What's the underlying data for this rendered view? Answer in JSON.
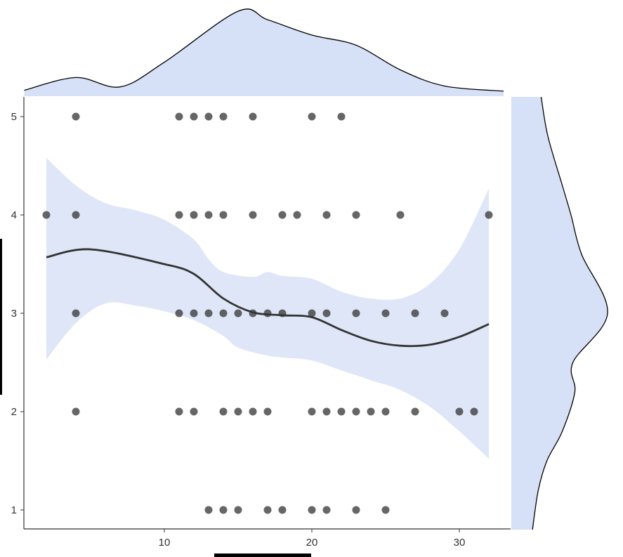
{
  "chart_data": {
    "type": "scatter",
    "title": "",
    "xlabel": "",
    "ylabel": "",
    "xlim": [
      0.5,
      33
    ],
    "ylim": [
      0.8,
      5.2
    ],
    "x_ticks": [
      "10",
      "20",
      "30"
    ],
    "x_tick_values": [
      10,
      20,
      30
    ],
    "y_ticks": [
      "1",
      "2",
      "3",
      "4",
      "5"
    ],
    "y_tick_values": [
      1,
      2,
      3,
      4,
      5
    ],
    "grid": false,
    "colors": {
      "points": "#333333",
      "ribbon": "#dfe6f7",
      "line": "#333333",
      "density_fill": "#d6e1f7"
    },
    "points": [
      [
        4,
        5
      ],
      [
        11,
        5
      ],
      [
        12,
        5
      ],
      [
        13,
        5
      ],
      [
        14,
        5
      ],
      [
        16,
        5
      ],
      [
        20,
        5
      ],
      [
        22,
        5
      ],
      [
        2,
        4
      ],
      [
        4,
        4
      ],
      [
        11,
        4
      ],
      [
        12,
        4
      ],
      [
        13,
        4
      ],
      [
        14,
        4
      ],
      [
        16,
        4
      ],
      [
        18,
        4
      ],
      [
        19,
        4
      ],
      [
        21,
        4
      ],
      [
        23,
        4
      ],
      [
        26,
        4
      ],
      [
        32,
        4
      ],
      [
        4,
        3
      ],
      [
        11,
        3
      ],
      [
        12,
        3
      ],
      [
        13,
        3
      ],
      [
        14,
        3
      ],
      [
        15,
        3
      ],
      [
        16,
        3
      ],
      [
        17,
        3
      ],
      [
        18,
        3
      ],
      [
        20,
        3
      ],
      [
        21,
        3
      ],
      [
        23,
        3
      ],
      [
        25,
        3
      ],
      [
        27,
        3
      ],
      [
        29,
        3
      ],
      [
        4,
        2
      ],
      [
        11,
        2
      ],
      [
        12,
        2
      ],
      [
        14,
        2
      ],
      [
        15,
        2
      ],
      [
        16,
        2
      ],
      [
        17,
        2
      ],
      [
        20,
        2
      ],
      [
        21,
        2
      ],
      [
        22,
        2
      ],
      [
        23,
        2
      ],
      [
        24,
        2
      ],
      [
        25,
        2
      ],
      [
        27,
        2
      ],
      [
        30,
        2
      ],
      [
        31,
        2
      ],
      [
        13,
        1
      ],
      [
        14,
        1
      ],
      [
        15,
        1
      ],
      [
        17,
        1
      ],
      [
        18,
        1
      ],
      [
        20,
        1
      ],
      [
        21,
        1
      ],
      [
        23,
        1
      ],
      [
        25,
        1
      ]
    ],
    "smooth": {
      "x": [
        2,
        5,
        10,
        12,
        14,
        16,
        18,
        20,
        22,
        24,
        26,
        28,
        30,
        32
      ],
      "y": [
        3.57,
        3.65,
        3.5,
        3.4,
        3.15,
        3.01,
        2.98,
        2.96,
        2.83,
        2.72,
        2.67,
        2.68,
        2.76,
        2.89
      ]
    },
    "ci_upper": {
      "x": [
        2,
        4,
        6,
        8,
        10,
        12,
        13,
        14,
        16,
        17,
        18,
        20,
        22,
        24,
        26,
        28,
        30,
        32
      ],
      "y": [
        4.58,
        4.3,
        4.12,
        4.05,
        3.95,
        3.75,
        3.55,
        3.42,
        3.37,
        3.42,
        3.38,
        3.35,
        3.22,
        3.15,
        3.15,
        3.3,
        3.65,
        4.27
      ]
    },
    "ci_lower": {
      "x": [
        2,
        4,
        6,
        8,
        10,
        12,
        14,
        15,
        17,
        18,
        20,
        22,
        24,
        26,
        28,
        30,
        32
      ],
      "y": [
        2.53,
        2.9,
        3.1,
        3.08,
        3.02,
        2.93,
        2.77,
        2.65,
        2.57,
        2.55,
        2.52,
        2.42,
        2.32,
        2.22,
        2.05,
        1.8,
        1.52
      ]
    },
    "x_density": {
      "x": [
        0.5,
        4,
        7,
        10,
        15,
        17,
        20,
        23,
        26,
        29,
        33
      ],
      "density": [
        0.07,
        0.22,
        0.11,
        0.4,
        1.0,
        0.9,
        0.72,
        0.6,
        0.31,
        0.12,
        0.06
      ]
    },
    "y_density": {
      "y": [
        5.2,
        4.8,
        4.3,
        4.0,
        3.6,
        3.0,
        2.5,
        2.2,
        1.8,
        1.5,
        1.2,
        0.8
      ],
      "density": [
        0.31,
        0.38,
        0.53,
        0.62,
        0.73,
        1.0,
        0.64,
        0.66,
        0.53,
        0.37,
        0.28,
        0.22
      ]
    }
  }
}
